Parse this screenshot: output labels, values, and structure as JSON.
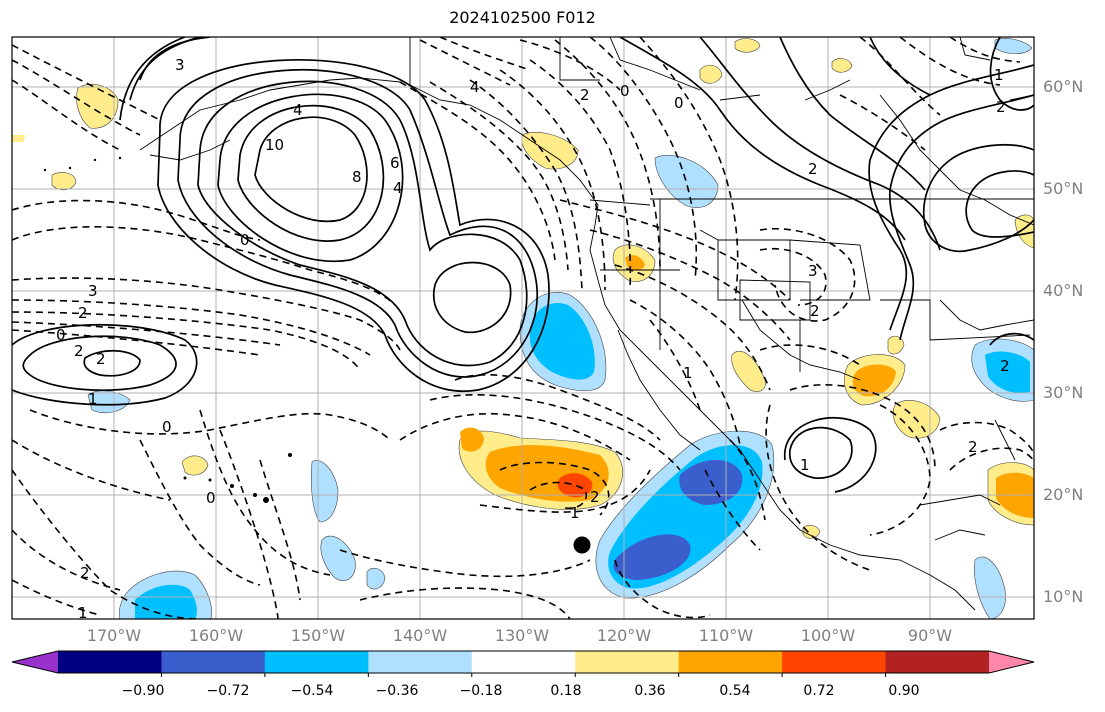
{
  "title": "2024102500 F012",
  "lat_labels": [
    "60°N",
    "50°N",
    "40°N",
    "30°N",
    "20°N",
    "10°N"
  ],
  "lon_labels": [
    "170°W",
    "160°W",
    "150°W",
    "140°W",
    "130°W",
    "120°W",
    "110°W",
    "100°W",
    "90°W"
  ],
  "colorbar": {
    "colors": [
      "#9932cc",
      "#000080",
      "#3a5fcd",
      "#00bfff",
      "#b0e0ff",
      "#ffffff",
      "#ffec8b",
      "#ffa500",
      "#ff4500",
      "#b22222",
      "#ff88aa"
    ],
    "tick_labels": [
      "−0.90",
      "−0.72",
      "−0.54",
      "−0.36",
      "−0.18",
      "0.18",
      "0.36",
      "0.54",
      "0.72",
      "0.90"
    ]
  },
  "contour_labels": [
    "4",
    "10",
    "8",
    "6",
    "4",
    "3",
    "0",
    "3",
    "2",
    "0",
    "2",
    "2",
    "1",
    "0",
    "0",
    "2",
    "1",
    "2",
    "1",
    "4",
    "0",
    "0",
    "2",
    "3",
    "2",
    "1",
    "2",
    "1",
    "2",
    "2",
    "2",
    "1"
  ],
  "marker": "storm-position-dot"
}
